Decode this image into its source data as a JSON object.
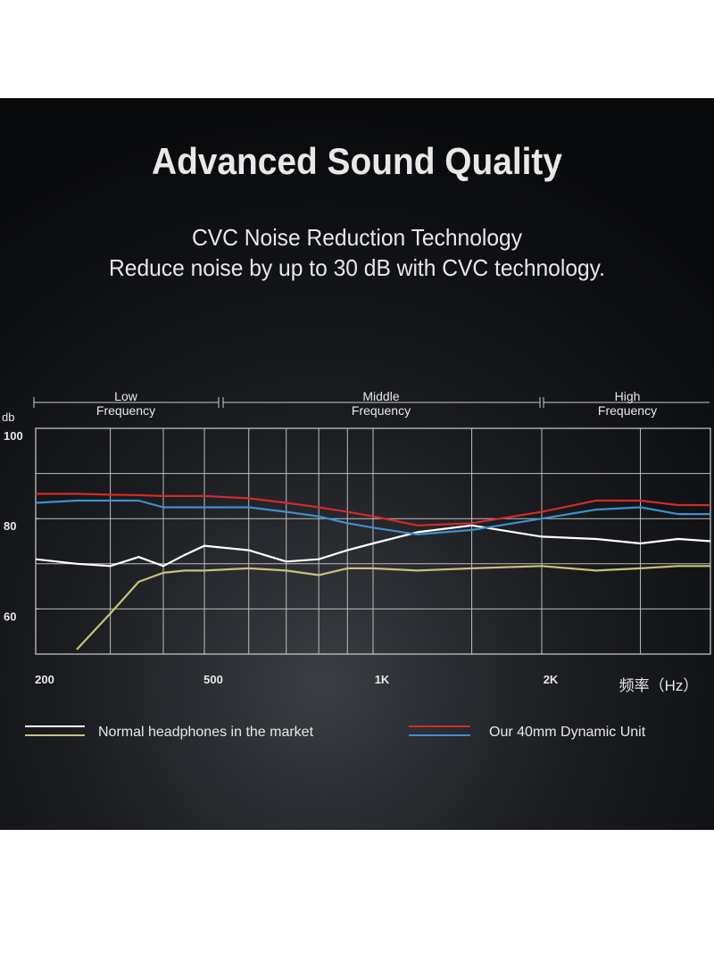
{
  "chart_data": {
    "type": "line",
    "title": "Advanced Sound Quality",
    "subtitle": [
      "CVC Noise Reduction Technology",
      "Reduce noise by up to 30 dB with CVC technology."
    ],
    "bands": [
      [
        "Low",
        "Frequency"
      ],
      [
        "Middle",
        "Frequency"
      ],
      [
        "High",
        "Frequency"
      ]
    ],
    "ylabel": "db",
    "xlabel": "频率（Hz）",
    "log_x": true,
    "xlim": [
      200,
      4000
    ],
    "xticks": [
      200,
      500,
      {
        "value": 1000,
        "label": "1K"
      },
      {
        "value": 2000,
        "label": "2K"
      }
    ],
    "xgrid": [
      300,
      400,
      500,
      600,
      700,
      800,
      900,
      1000,
      1500,
      2000,
      3000
    ],
    "ylim": [
      50,
      100
    ],
    "yticks": [
      60,
      80,
      100
    ],
    "ygrid": [
      60,
      70,
      80,
      90
    ],
    "x": [
      200,
      250,
      300,
      350,
      400,
      450,
      500,
      600,
      700,
      800,
      900,
      1000,
      1200,
      1500,
      2000,
      2500,
      3000,
      3500,
      4000
    ],
    "series": [
      {
        "name": "Normal headphones in the market",
        "lines": [
          {
            "color": "#ffffff",
            "values": [
              71,
              70,
              69.5,
              71.5,
              69.5,
              72,
              74,
              73,
              70.5,
              71,
              73,
              74.5,
              77,
              78.5,
              76,
              75.5,
              74.5,
              75.5,
              75
            ]
          },
          {
            "color": "#c9c27a",
            "values": [
              null,
              51,
              59,
              66,
              68,
              68.5,
              68.5,
              69,
              68.5,
              67.5,
              69,
              69,
              68.5,
              69,
              69.5,
              68.5,
              69,
              69.5,
              69.5
            ]
          }
        ]
      },
      {
        "name": "Our 40mm Dynamic Unit",
        "lines": [
          {
            "color": "#d42a2a",
            "values": [
              85.5,
              85.5,
              85.3,
              85.2,
              85,
              85,
              85,
              84.5,
              83.5,
              82.5,
              81.5,
              80.5,
              78.5,
              79,
              81.5,
              84,
              84,
              83,
              83
            ]
          },
          {
            "color": "#3f8fd0",
            "values": [
              83.5,
              84,
              84,
              84,
              82.5,
              82.5,
              82.5,
              82.5,
              81.5,
              80.5,
              79,
              78,
              76.5,
              77.5,
              80,
              82,
              82.5,
              81,
              81
            ]
          }
        ]
      }
    ]
  }
}
